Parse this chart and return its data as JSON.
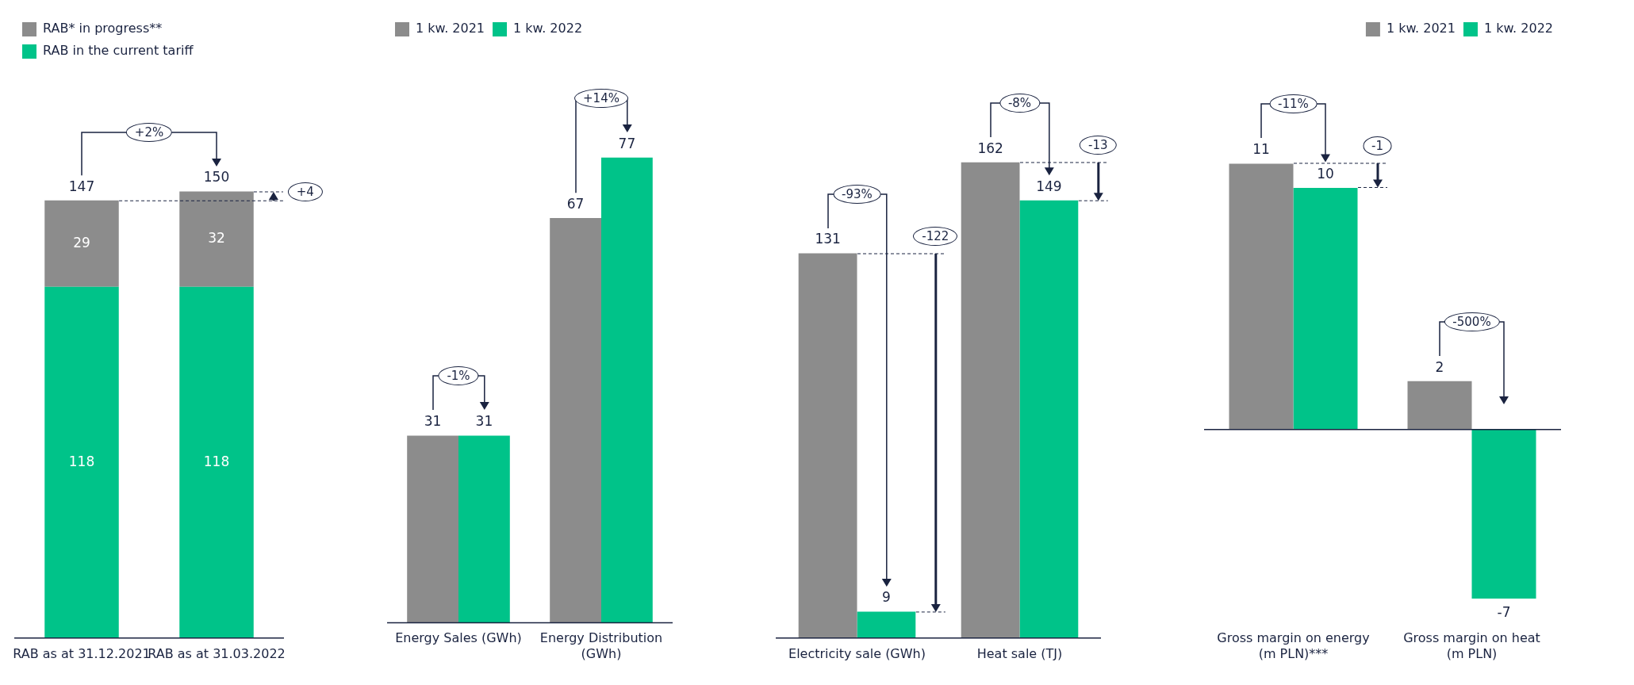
{
  "chart_data": [
    {
      "type": "bar",
      "stacked": true,
      "data_labels": true,
      "legend": "top left",
      "categories": [
        "RAB as at 31.12.2021",
        "RAB as at 31.03.2022"
      ],
      "series": [
        {
          "name": "RAB in the current tariff",
          "color": "#00c389",
          "values": [
            118,
            118
          ]
        },
        {
          "name": "RAB* in progress**",
          "color": "#8c8c8c",
          "values": [
            29,
            32
          ]
        }
      ],
      "totals": [
        "147",
        "150"
      ],
      "annotations": [
        "+2%",
        "+4"
      ]
    },
    {
      "type": "bar",
      "data_labels": true,
      "legend": "top left",
      "categories": [
        "Energy Sales (GWh)",
        "Energy Distribution (GWh)"
      ],
      "series": [
        {
          "name": "1 kw. 2021",
          "color": "#8c8c8c",
          "values": [
            31,
            67
          ]
        },
        {
          "name": "1 kw. 2022",
          "color": "#00c389",
          "values": [
            31,
            77
          ]
        }
      ],
      "annotations": [
        "-1%",
        "+14%"
      ]
    },
    {
      "type": "bar",
      "data_labels": true,
      "categories": [
        "Electricity sale (GWh)",
        "Heat sale (TJ)"
      ],
      "series": [
        {
          "color": "#8c8c8c",
          "values": [
            131,
            162
          ]
        },
        {
          "color": "#00c389",
          "values": [
            9,
            149
          ]
        }
      ],
      "annotations": [
        "-93%",
        "-122",
        "-8%",
        "-13"
      ]
    },
    {
      "type": "bar",
      "data_labels": true,
      "legend": "top right",
      "categories": [
        "Gross margin on energy (m PLN)***",
        "Gross margin on heat (m PLN)"
      ],
      "series": [
        {
          "name": "1 kw. 2021",
          "color": "#8c8c8c",
          "values": [
            11,
            2
          ]
        },
        {
          "name": "1 kw. 2022",
          "color": "#00c389",
          "values": [
            10,
            -7
          ]
        }
      ],
      "annotations": [
        "-11%",
        "-1",
        "-500%"
      ]
    }
  ]
}
